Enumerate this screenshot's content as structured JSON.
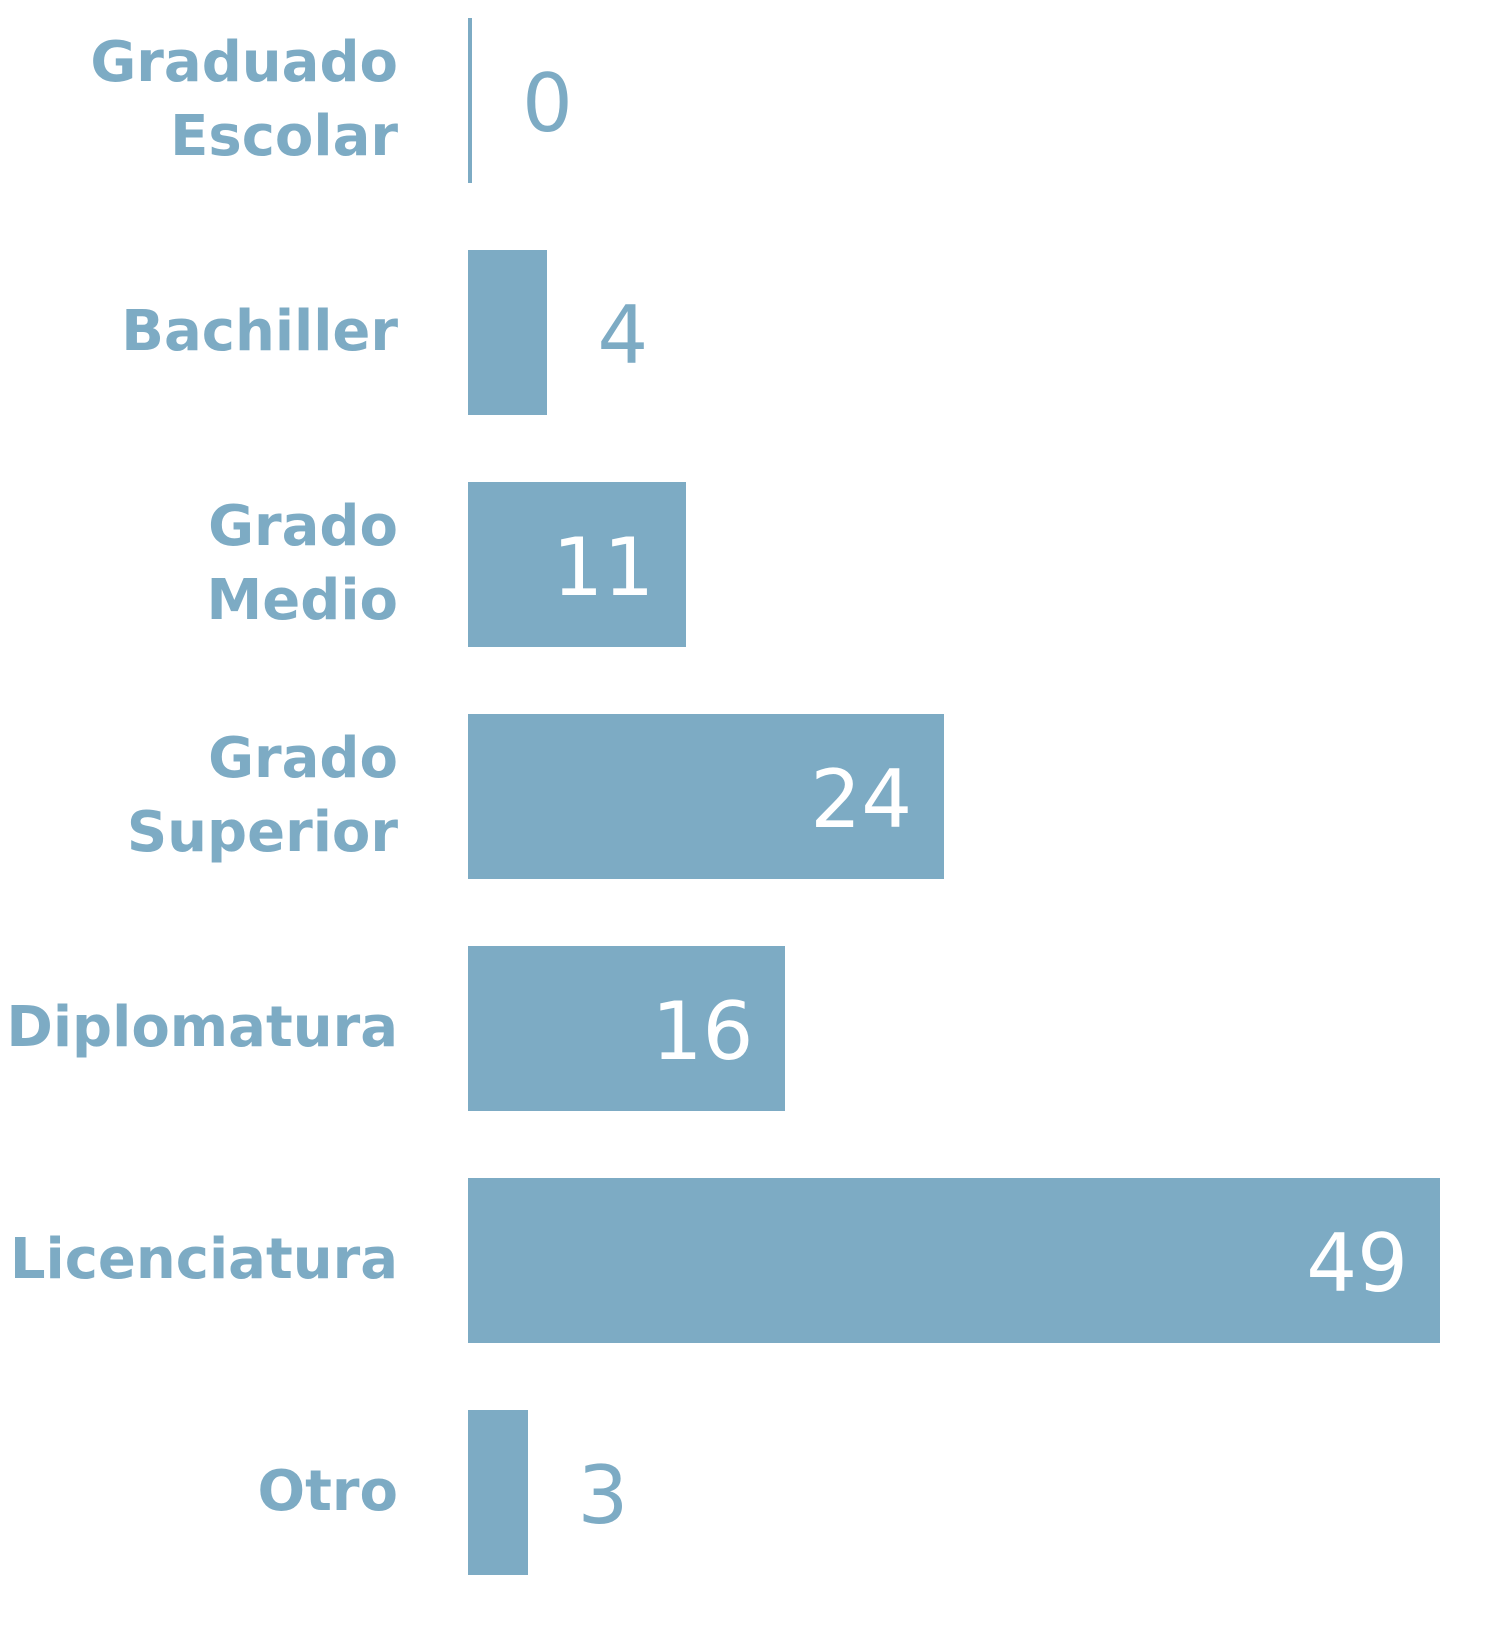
{
  "chart_data": {
    "type": "bar",
    "orientation": "horizontal",
    "categories": [
      "Graduado\nEscolar",
      "Bachiller",
      "Grado\nMedio",
      "Grado\nSuperior",
      "Diplomatura",
      "Licenciatura",
      "Otro"
    ],
    "values": [
      0,
      4,
      11,
      24,
      16,
      49,
      3
    ],
    "color": "#7dabc4"
  }
}
